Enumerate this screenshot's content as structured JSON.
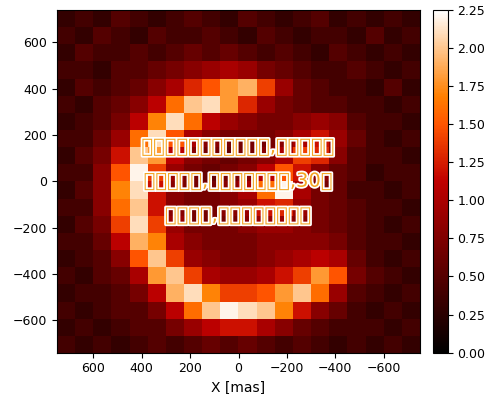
{
  "chart_data": {
    "type": "heatmap",
    "x_label": "X [mas]",
    "xlim": [
      750,
      -750
    ],
    "ylim": [
      -740,
      740
    ],
    "xticks": [
      600,
      400,
      200,
      0,
      {
        "value": -200,
        "label": "−200"
      },
      {
        "value": -400,
        "label": "−400"
      },
      {
        "value": -600,
        "label": "−600"
      }
    ],
    "yticks": [
      {
        "value": -600,
        "label": "−600"
      },
      {
        "value": -400,
        "label": "−400"
      },
      {
        "value": -200,
        "label": "−200"
      },
      0,
      200,
      400,
      600
    ],
    "color": "gist_heat",
    "colorbar_range": [
      0,
      2.25
    ],
    "colorbar_ticks": [
      {
        "value": 0,
        "label": "0.00"
      },
      {
        "value": 0.25,
        "label": "0.25"
      },
      {
        "value": 0.5,
        "label": "0.50"
      },
      {
        "value": 0.75,
        "label": "0.75"
      },
      {
        "value": 1,
        "label": "1.00"
      },
      {
        "value": 1.25,
        "label": "1.25"
      },
      {
        "value": 1.5,
        "label": "1.50"
      },
      {
        "value": 1.75,
        "label": "1.75"
      },
      {
        "value": 2,
        "label": "2.00"
      },
      {
        "value": 2.25,
        "label": "2.25"
      }
    ],
    "cells": [
      [
        0.3,
        0.4,
        0.3,
        0.5,
        0.4,
        0.3,
        0.4,
        0.5,
        0.4,
        0.3,
        0.5,
        0.4,
        0.3,
        0.4,
        0.5,
        0.3,
        0.4,
        0.3,
        0.4,
        0.3
      ],
      [
        0.4,
        0.3,
        0.5,
        0.4,
        0.3,
        0.5,
        0.4,
        0.4,
        0.5,
        0.4,
        0.3,
        0.5,
        0.4,
        0.3,
        0.4,
        0.4,
        0.3,
        0.5,
        0.3,
        0.4
      ],
      [
        0.3,
        0.5,
        0.4,
        0.4,
        0.5,
        0.4,
        0.5,
        0.6,
        0.5,
        0.6,
        0.5,
        0.4,
        0.5,
        0.4,
        0.3,
        0.5,
        0.4,
        0.3,
        0.4,
        0.3
      ],
      [
        0.4,
        0.4,
        0.3,
        0.5,
        0.5,
        0.6,
        0.7,
        0.8,
        0.9,
        1.0,
        0.9,
        0.7,
        0.6,
        0.5,
        0.4,
        0.4,
        0.5,
        0.4,
        0.3,
        0.4
      ],
      [
        0.3,
        0.5,
        0.4,
        0.5,
        0.6,
        0.8,
        1.0,
        1.3,
        1.5,
        1.8,
        1.9,
        1.4,
        0.9,
        0.6,
        0.5,
        0.4,
        0.4,
        0.3,
        0.5,
        0.3
      ],
      [
        0.4,
        0.3,
        0.5,
        0.6,
        0.8,
        1.1,
        1.6,
        2.0,
        2.1,
        1.8,
        1.3,
        0.9,
        0.7,
        0.6,
        0.5,
        0.5,
        0.4,
        0.4,
        0.3,
        0.4
      ],
      [
        0.3,
        0.4,
        0.5,
        0.7,
        1.1,
        1.7,
        2.1,
        1.6,
        1.1,
        0.9,
        0.8,
        0.7,
        0.7,
        0.8,
        0.9,
        0.8,
        0.5,
        0.4,
        0.4,
        0.3
      ],
      [
        0.4,
        0.4,
        0.6,
        0.9,
        1.6,
        2.1,
        1.5,
        1.0,
        0.8,
        0.7,
        0.7,
        0.7,
        0.8,
        1.0,
        1.2,
        0.9,
        0.6,
        0.4,
        0.3,
        0.4
      ],
      [
        0.3,
        0.5,
        0.7,
        1.2,
        2.0,
        1.8,
        1.1,
        0.8,
        0.7,
        0.6,
        0.7,
        0.8,
        1.0,
        1.4,
        1.3,
        0.8,
        0.5,
        0.4,
        0.4,
        0.3
      ],
      [
        0.4,
        0.4,
        0.8,
        1.5,
        2.2,
        1.4,
        0.9,
        0.7,
        0.6,
        0.7,
        0.8,
        1.1,
        1.5,
        1.2,
        0.8,
        0.6,
        0.5,
        0.3,
        0.4,
        0.4
      ],
      [
        0.3,
        0.5,
        0.8,
        1.7,
        2.1,
        1.2,
        0.8,
        0.7,
        0.7,
        0.8,
        1.0,
        1.6,
        2.2,
        1.0,
        0.7,
        0.6,
        0.4,
        0.4,
        0.3,
        0.4
      ],
      [
        0.4,
        0.4,
        0.8,
        1.6,
        2.0,
        1.2,
        0.8,
        0.7,
        0.7,
        0.8,
        0.9,
        1.2,
        1.3,
        0.9,
        0.7,
        0.6,
        0.5,
        0.4,
        0.4,
        0.3
      ],
      [
        0.3,
        0.5,
        0.7,
        1.4,
        2.1,
        1.4,
        0.9,
        0.7,
        0.7,
        0.7,
        0.8,
        0.9,
        0.9,
        0.8,
        0.7,
        0.6,
        0.5,
        0.4,
        0.3,
        0.4
      ],
      [
        0.4,
        0.4,
        0.6,
        1.1,
        1.9,
        1.7,
        1.0,
        0.8,
        0.7,
        0.7,
        0.7,
        0.8,
        0.8,
        0.8,
        0.8,
        0.7,
        0.5,
        0.4,
        0.4,
        0.3
      ],
      [
        0.3,
        0.4,
        0.5,
        0.8,
        1.5,
        2.0,
        1.4,
        0.9,
        0.8,
        0.7,
        0.7,
        0.8,
        0.9,
        1.0,
        1.1,
        1.0,
        0.6,
        0.4,
        0.3,
        0.4
      ],
      [
        0.4,
        0.3,
        0.5,
        0.6,
        1.0,
        1.8,
        2.0,
        1.4,
        1.0,
        0.9,
        0.9,
        1.0,
        1.2,
        1.4,
        1.8,
        1.5,
        0.7,
        0.5,
        0.4,
        0.3
      ],
      [
        0.3,
        0.4,
        0.4,
        0.5,
        0.7,
        1.1,
        1.9,
        2.1,
        1.7,
        1.4,
        1.4,
        1.5,
        1.8,
        2.0,
        1.6,
        0.9,
        0.5,
        0.4,
        0.3,
        0.4
      ],
      [
        0.4,
        0.3,
        0.4,
        0.5,
        0.5,
        0.7,
        1.1,
        1.6,
        2.0,
        2.2,
        2.1,
        2.0,
        1.7,
        1.2,
        0.8,
        0.6,
        0.4,
        0.3,
        0.4,
        0.3
      ],
      [
        0.3,
        0.4,
        0.3,
        0.4,
        0.5,
        0.5,
        0.7,
        0.9,
        1.1,
        1.2,
        1.2,
        1.0,
        0.8,
        0.6,
        0.5,
        0.4,
        0.4,
        0.4,
        0.3,
        0.4
      ],
      [
        0.4,
        0.3,
        0.4,
        0.3,
        0.4,
        0.5,
        0.4,
        0.5,
        0.6,
        0.5,
        0.6,
        0.5,
        0.4,
        0.5,
        0.4,
        0.3,
        0.4,
        0.3,
        0.4,
        0.3
      ]
    ],
    "annotations": [
      "关于青春奋斗的素材事例,伟人的励志",
      "小故事简短,每日励志小故事,30秒",
      "励志短片,中外名人故事立人"
    ]
  }
}
